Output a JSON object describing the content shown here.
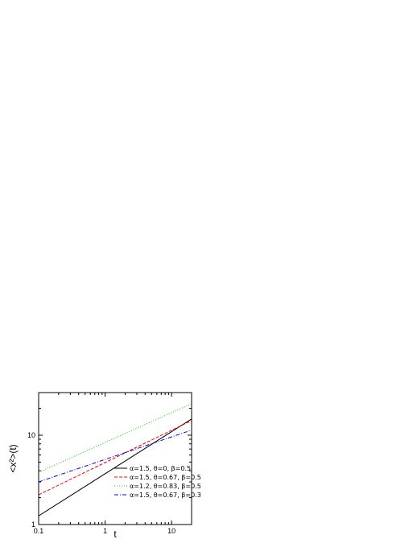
{
  "chart_data": {
    "type": "line",
    "title": "",
    "xlabel": "t",
    "ylabel": "<x²>(t)",
    "x_scale": "log",
    "y_scale": "log",
    "xlim": [
      0.1,
      20
    ],
    "ylim": [
      1,
      30
    ],
    "x_ticks": [
      {
        "value": 0.1,
        "label": "0.1"
      },
      {
        "value": 1,
        "label": "1"
      },
      {
        "value": 10,
        "label": "10"
      }
    ],
    "y_ticks": [
      {
        "value": 1,
        "label": "1"
      },
      {
        "value": 10,
        "label": "10"
      }
    ],
    "grid": false,
    "legend_position": "bottom-right",
    "series": [
      {
        "name": "α=1.5, θ=0,      β=0.5",
        "color": "#000000",
        "dash": "solid",
        "x": [
          0.1,
          20
        ],
        "y": [
          1.25,
          15.2
        ]
      },
      {
        "name": "α=1.5, θ=0.67, β=0.5",
        "color": "#ff0000",
        "dash": "dashed",
        "x": [
          0.1,
          20
        ],
        "y": [
          2.15,
          14.6
        ]
      },
      {
        "name": "α=1.2, θ=0.83, β=0.5",
        "color": "#00cc00",
        "dash": "dotted",
        "x": [
          0.1,
          20
        ],
        "y": [
          3.85,
          22.5
        ]
      },
      {
        "name": "α=1.5, θ=0.67, β=0.3",
        "color": "#0000ff",
        "dash": "dashdot",
        "x": [
          0.1,
          20
        ],
        "y": [
          3.0,
          11.4
        ]
      }
    ]
  }
}
